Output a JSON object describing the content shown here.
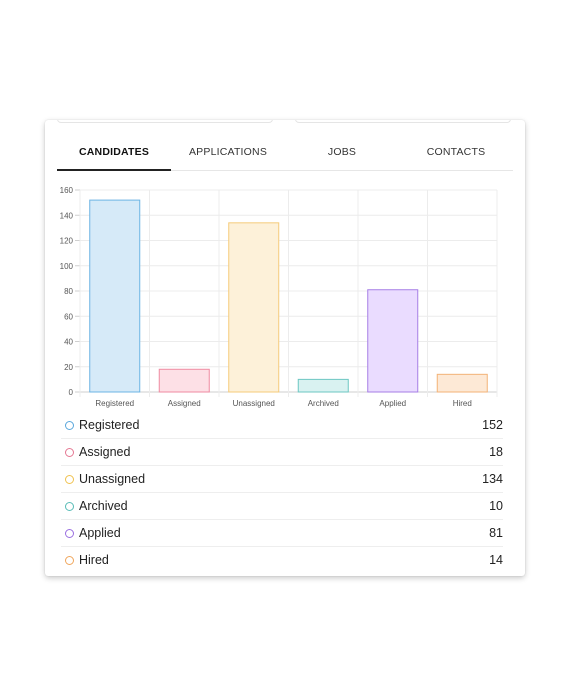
{
  "tabs": [
    {
      "label": "CANDIDATES",
      "active": true
    },
    {
      "label": "APPLICATIONS",
      "active": false
    },
    {
      "label": "JOBS",
      "active": false
    },
    {
      "label": "CONTACTS",
      "active": false
    }
  ],
  "chart_data": {
    "type": "bar",
    "categories": [
      "Registered",
      "Assigned",
      "Unassigned",
      "Archived",
      "Applied",
      "Hired"
    ],
    "values": [
      152,
      18,
      134,
      10,
      81,
      14
    ],
    "ylim": [
      0,
      160
    ],
    "yticks": [
      0,
      20,
      40,
      60,
      80,
      100,
      120,
      140,
      160
    ],
    "grid": true,
    "colors": [
      {
        "fill": "#d6eaf8",
        "stroke": "#6cb4e4"
      },
      {
        "fill": "#fde0e6",
        "stroke": "#ef8aa1"
      },
      {
        "fill": "#fdf1d9",
        "stroke": "#f5cb7a"
      },
      {
        "fill": "#d9f2f1",
        "stroke": "#6cc7c2"
      },
      {
        "fill": "#eadcff",
        "stroke": "#a67ee6"
      },
      {
        "fill": "#fde9d6",
        "stroke": "#f3b277"
      }
    ]
  },
  "legend": [
    {
      "label": "Registered",
      "value": "152",
      "color": "#5aa7dc"
    },
    {
      "label": "Assigned",
      "value": "18",
      "color": "#e57893"
    },
    {
      "label": "Unassigned",
      "value": "134",
      "color": "#f0c24f"
    },
    {
      "label": "Archived",
      "value": "10",
      "color": "#5bbdb8"
    },
    {
      "label": "Applied",
      "value": "81",
      "color": "#9a6fe0"
    },
    {
      "label": "Hired",
      "value": "14",
      "color": "#f0a65c"
    }
  ]
}
